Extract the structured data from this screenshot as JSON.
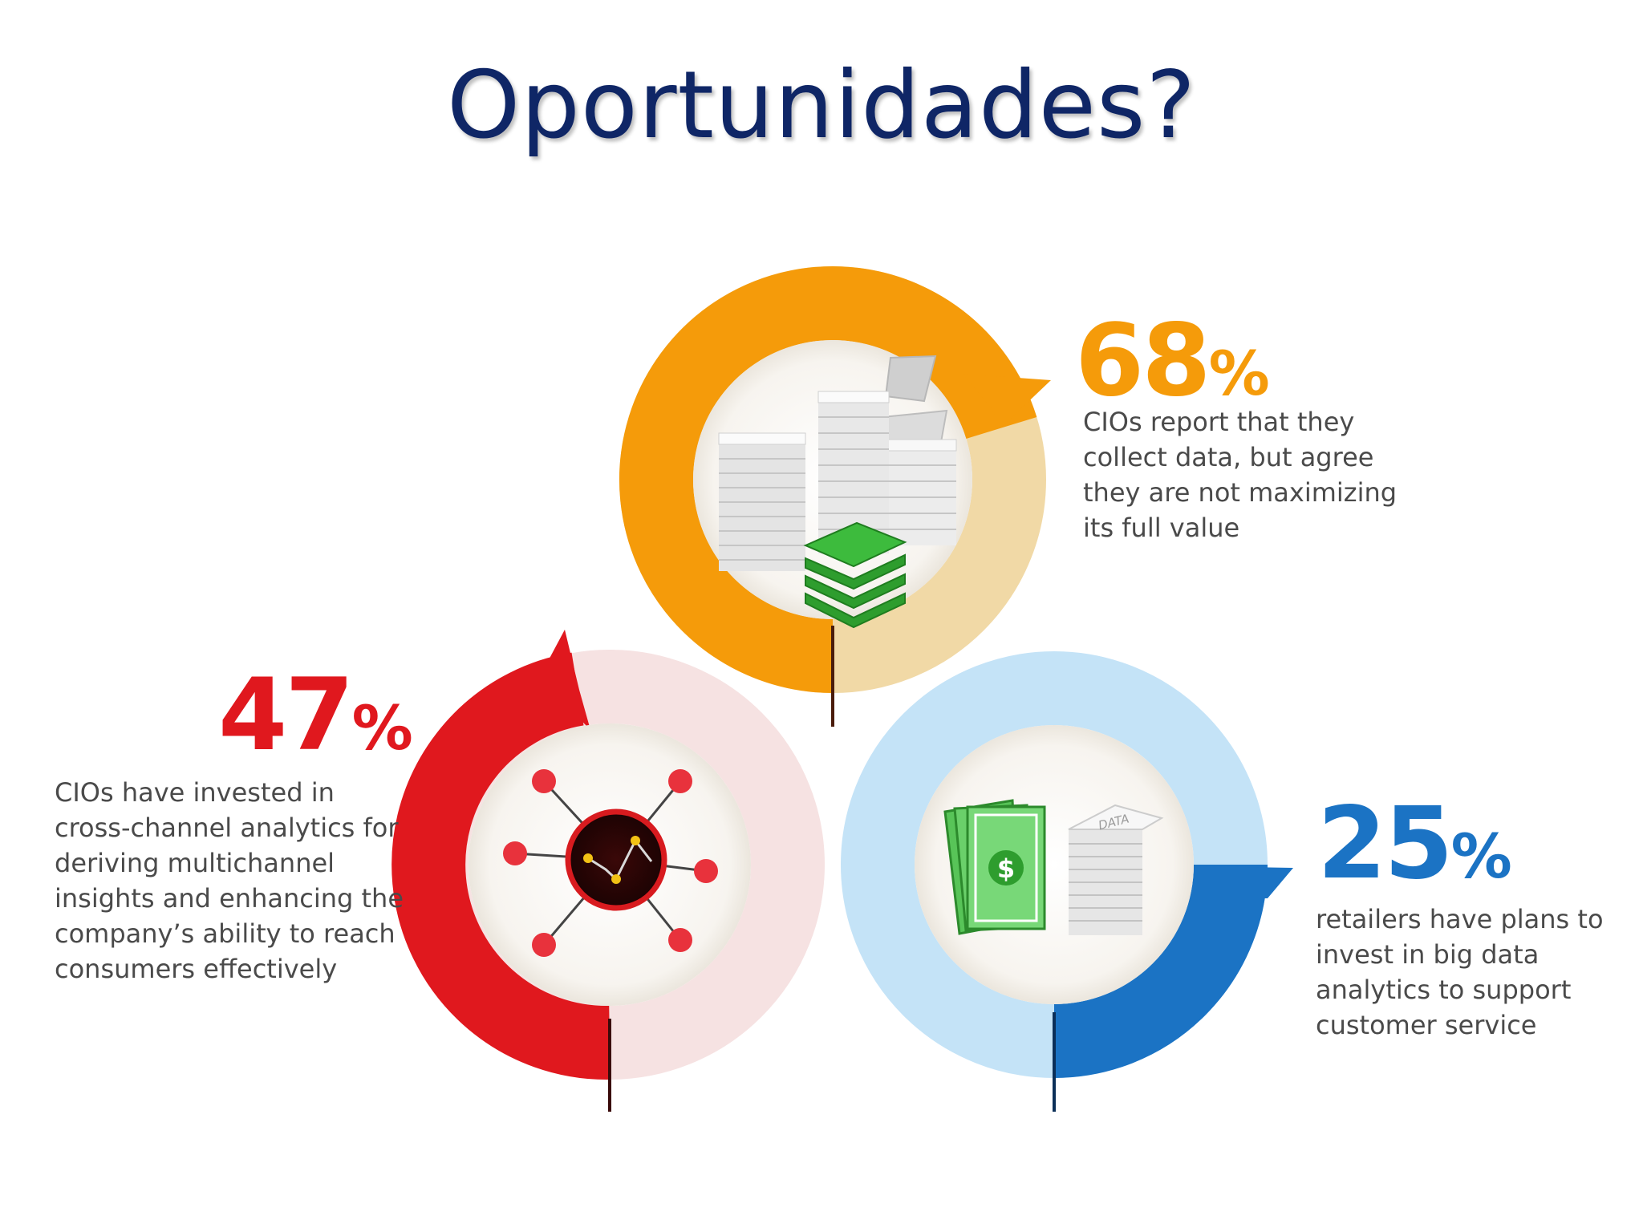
{
  "title": "Oportunidades?",
  "colors": {
    "title": "#0f2666",
    "orange": "#f59b0a",
    "orange_light": "#f1d9a6",
    "red": "#e0181e",
    "red_light": "#f6e2e2",
    "blue": "#1b73c4",
    "blue_light": "#c4e3f7",
    "description_text": "#4a4a4a"
  },
  "stats": [
    {
      "id": "cio-data",
      "value": "68",
      "unit": "%",
      "fraction": 0.68,
      "color": "#f59b0a",
      "icon": "document-stacks-icon",
      "lines": [
        "CIOs report that they",
        "collect data, but agree",
        "they are not maximizing",
        "its full value"
      ]
    },
    {
      "id": "cio-analytics",
      "value": "47",
      "unit": "%",
      "fraction": 0.47,
      "color": "#e0181e",
      "icon": "network-chart-icon",
      "lines": [
        "CIOs have invested in",
        "cross-channel analytics for",
        "deriving multichannel",
        "insights and enhancing the",
        "company’s ability to reach",
        "consumers effectively"
      ]
    },
    {
      "id": "retailers",
      "value": "25",
      "unit": "%",
      "fraction": 0.25,
      "color": "#1b73c4",
      "icon": "money-data-icon",
      "icon_text": "DATA",
      "lines": [
        "retailers have plans to",
        "invest in big data",
        "analytics to support",
        "customer service"
      ]
    }
  ]
}
